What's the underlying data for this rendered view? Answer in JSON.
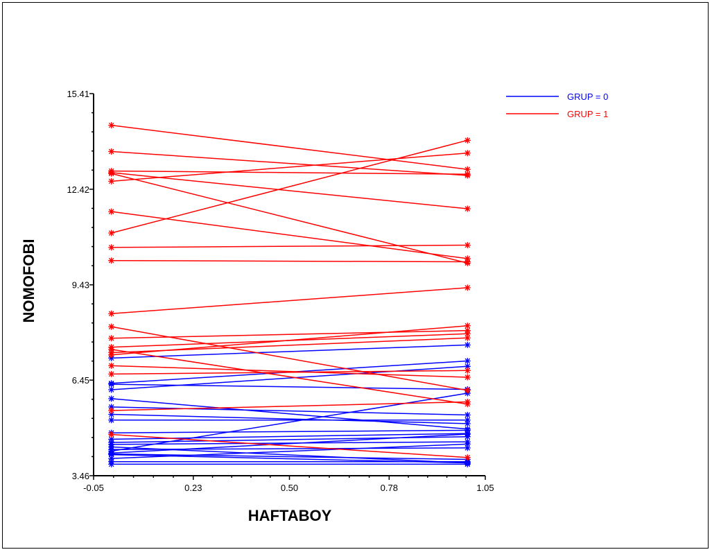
{
  "chart_data": {
    "type": "line",
    "xlabel": "HAFTABOY",
    "ylabel": "NOMOFOBI",
    "xlim": [
      -0.05,
      1.05
    ],
    "ylim": [
      3.46,
      15.41
    ],
    "x_ticks": [
      "-0.05",
      "0.23",
      "0.50",
      "0.78",
      "1.05"
    ],
    "x_tick_values": [
      -0.05,
      0.23,
      0.5,
      0.78,
      1.05
    ],
    "y_ticks": [
      "3.46",
      "6.45",
      "9.43",
      "12.42",
      "15.41"
    ],
    "y_tick_values": [
      3.46,
      6.45,
      9.43,
      12.42,
      15.41
    ],
    "legend_position": "top-right",
    "colors": {
      "GRUP = 0": "#0000ff",
      "GRUP = 1": "#ff0000"
    },
    "series": [
      {
        "name": "GRUP = 0",
        "x": [
          0,
          1
        ],
        "lines": [
          [
            7.14,
            7.55
          ],
          [
            6.35,
            7.05
          ],
          [
            6.32,
            6.16
          ],
          [
            6.15,
            6.88
          ],
          [
            5.87,
            4.92
          ],
          [
            5.61,
            5.36
          ],
          [
            5.38,
            5.09
          ],
          [
            5.2,
            5.2
          ],
          [
            4.8,
            4.88
          ],
          [
            4.6,
            4.78
          ],
          [
            4.5,
            4.68
          ],
          [
            4.44,
            4.52
          ],
          [
            4.36,
            3.86
          ],
          [
            4.28,
            4.33
          ],
          [
            4.23,
            6.04
          ],
          [
            4.17,
            4.76
          ],
          [
            4.14,
            3.97
          ],
          [
            4.12,
            3.86
          ],
          [
            4.0,
            4.45
          ],
          [
            3.9,
            3.9
          ],
          [
            3.82,
            3.82
          ]
        ]
      },
      {
        "name": "GRUP = 1",
        "x": [
          0,
          1
        ],
        "lines": [
          [
            14.42,
            13.04
          ],
          [
            13.6,
            12.85
          ],
          [
            12.99,
            12.89
          ],
          [
            12.94,
            11.81
          ],
          [
            12.91,
            10.11
          ],
          [
            12.67,
            13.55
          ],
          [
            11.72,
            10.25
          ],
          [
            11.05,
            13.95
          ],
          [
            10.6,
            10.67
          ],
          [
            10.19,
            10.15
          ],
          [
            8.53,
            9.34
          ],
          [
            8.12,
            6.13
          ],
          [
            7.76,
            8.0
          ],
          [
            7.48,
            7.9
          ],
          [
            7.41,
            5.7
          ],
          [
            7.31,
            7.77
          ],
          [
            7.24,
            8.15
          ],
          [
            6.9,
            6.54
          ],
          [
            6.64,
            6.75
          ],
          [
            5.5,
            5.77
          ],
          [
            4.75,
            4.03
          ]
        ]
      }
    ]
  }
}
